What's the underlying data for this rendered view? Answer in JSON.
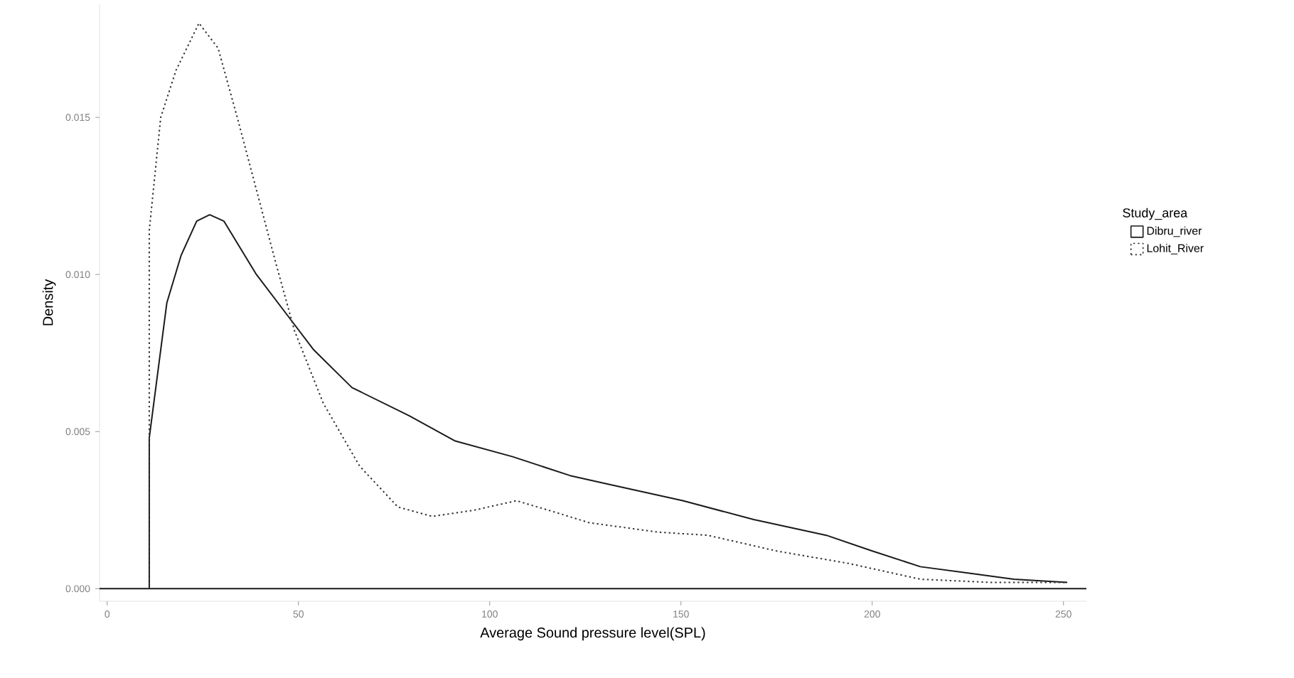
{
  "chart_data": {
    "type": "line",
    "xlabel": "Average Sound pressure level(SPL)",
    "ylabel": "Density",
    "legend_title": "Study_area",
    "xlim": [
      -2,
      256
    ],
    "ylim": [
      -0.0004,
      0.0186
    ],
    "xticks": [
      0,
      50,
      100,
      150,
      200,
      250
    ],
    "yticks": [
      {
        "value": 0,
        "label": "0.000"
      },
      {
        "value": 0.005,
        "label": "0.005"
      },
      {
        "value": 0.01,
        "label": "0.010"
      },
      {
        "value": 0.015,
        "label": "0.015"
      }
    ],
    "grid": false,
    "ref_lines": [
      {
        "axis": "y",
        "value": 0,
        "color": "#1a1a1a"
      }
    ],
    "legend": "right",
    "marker": "none",
    "series": [
      {
        "name": "Dibru_river",
        "color": "#1a1a1a",
        "line_style": "solid",
        "x": [
          11,
          11,
          15.6,
          19.3,
          23.4,
          26.8,
          30.5,
          39,
          46.5,
          54,
          64,
          79,
          91,
          106,
          121,
          132,
          150.5,
          169,
          188,
          200,
          212.6,
          225,
          237,
          251
        ],
        "values": [
          0,
          0.0048,
          0.0091,
          0.0106,
          0.0117,
          0.0119,
          0.0117,
          0.01,
          0.0088,
          0.0076,
          0.0064,
          0.0055,
          0.0047,
          0.0042,
          0.0036,
          0.0033,
          0.0028,
          0.0022,
          0.0017,
          0.0012,
          0.0007,
          0.0005,
          0.0003,
          0.0002
        ]
      },
      {
        "name": "Lohit_River",
        "color": "#333333",
        "line_style": "dotted",
        "x": [
          11,
          11,
          14,
          18,
          24,
          29,
          34,
          39,
          44,
          49,
          56.5,
          66,
          76,
          85,
          96,
          107,
          118,
          126,
          144,
          157,
          175,
          194,
          212.6,
          231,
          251
        ],
        "values": [
          0,
          0.0114,
          0.015,
          0.0165,
          0.018,
          0.0172,
          0.015,
          0.0127,
          0.0104,
          0.0082,
          0.0059,
          0.0039,
          0.0026,
          0.0023,
          0.0025,
          0.0028,
          0.0024,
          0.0021,
          0.0018,
          0.0017,
          0.0012,
          0.0008,
          0.0003,
          0.0002,
          0.0002
        ]
      }
    ]
  }
}
